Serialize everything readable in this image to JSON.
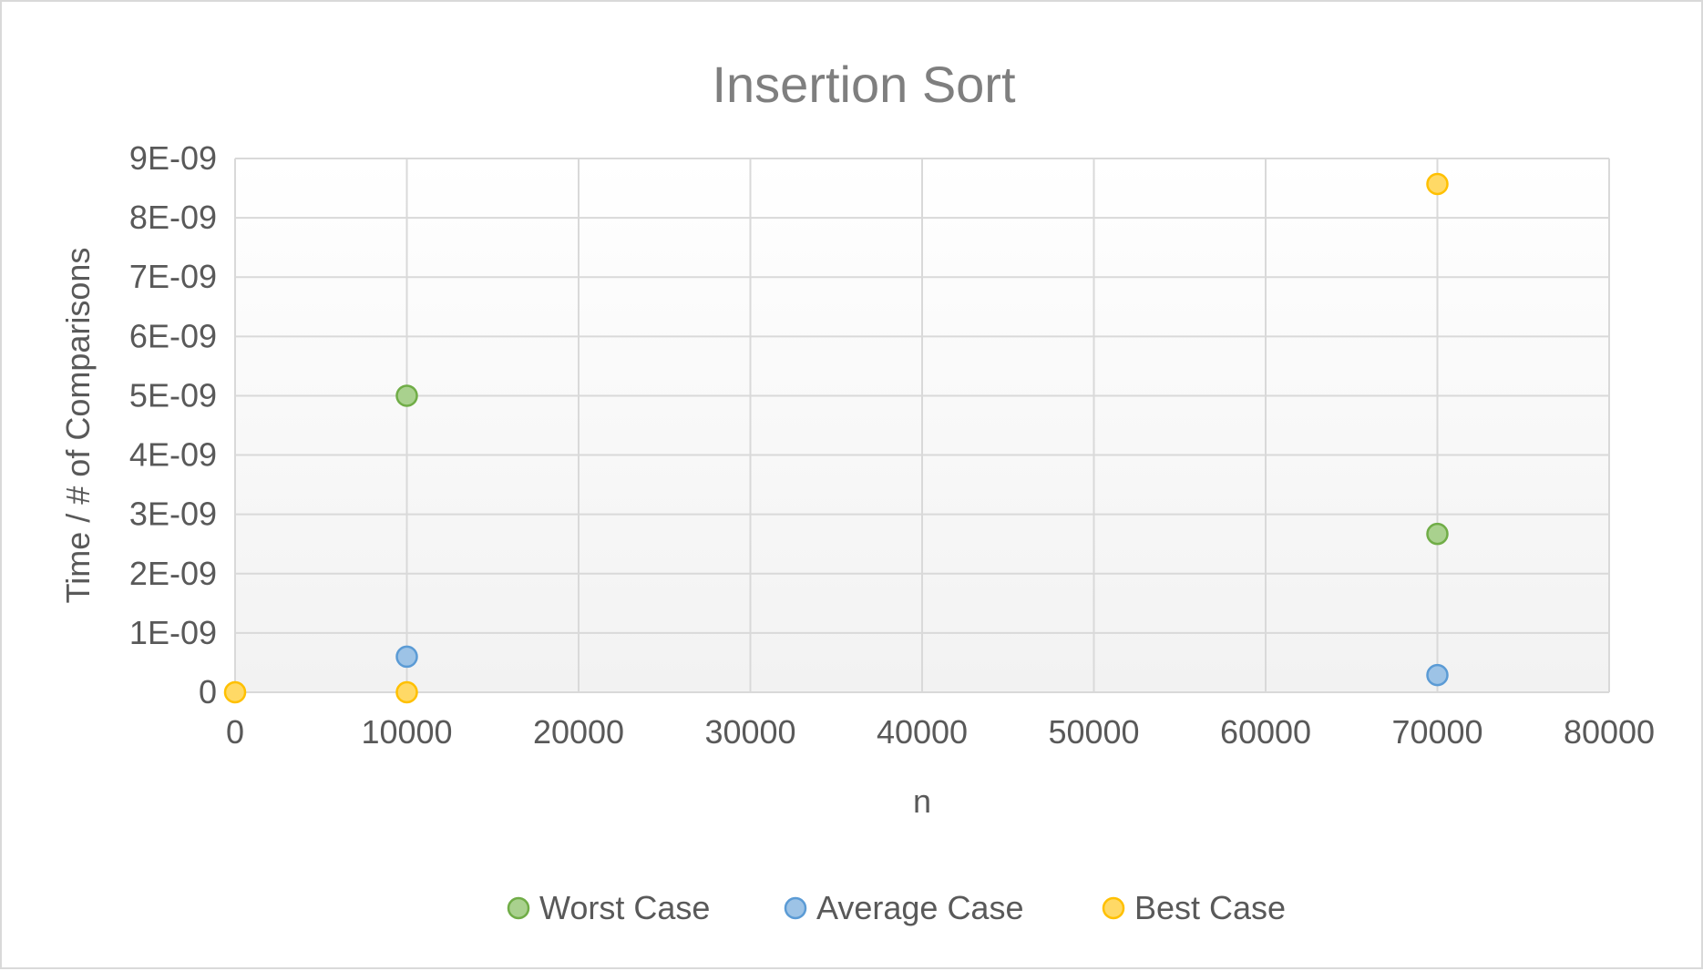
{
  "chart_data": {
    "type": "scatter",
    "title": "Insertion Sort",
    "xlabel": "n",
    "ylabel": "Time / # of Comparisons",
    "xlim": [
      0,
      80000
    ],
    "ylim": [
      0,
      9e-09
    ],
    "x_ticks": [
      0,
      10000,
      20000,
      30000,
      40000,
      50000,
      60000,
      70000,
      80000
    ],
    "x_tick_labels": [
      "0",
      "10000",
      "20000",
      "30000",
      "40000",
      "50000",
      "60000",
      "70000",
      "80000"
    ],
    "y_ticks": [
      0,
      1e-09,
      2e-09,
      3e-09,
      4e-09,
      5e-09,
      6e-09,
      7e-09,
      8e-09,
      9e-09
    ],
    "y_tick_labels": [
      "0",
      "1E-09",
      "2E-09",
      "3E-09",
      "4E-09",
      "5E-09",
      "6E-09",
      "7E-09",
      "8E-09",
      "9E-09"
    ],
    "grid": true,
    "legend_position": "bottom",
    "series": [
      {
        "name": "Worst Case",
        "color": "#70ad47",
        "fill": "#a9d18e",
        "points": [
          {
            "x": 10000,
            "y": 5e-09
          },
          {
            "x": 70000,
            "y": 2.67e-09
          }
        ]
      },
      {
        "name": "Average Case",
        "color": "#5b9bd5",
        "fill": "#9dc3e6",
        "points": [
          {
            "x": 10000,
            "y": 6e-10
          },
          {
            "x": 70000,
            "y": 2.9e-10
          }
        ]
      },
      {
        "name": "Best Case",
        "color": "#ffc000",
        "fill": "#ffd966",
        "points": [
          {
            "x": 0,
            "y": 0
          },
          {
            "x": 10000,
            "y": 0
          },
          {
            "x": 70000,
            "y": 8.57e-09
          }
        ]
      }
    ]
  }
}
